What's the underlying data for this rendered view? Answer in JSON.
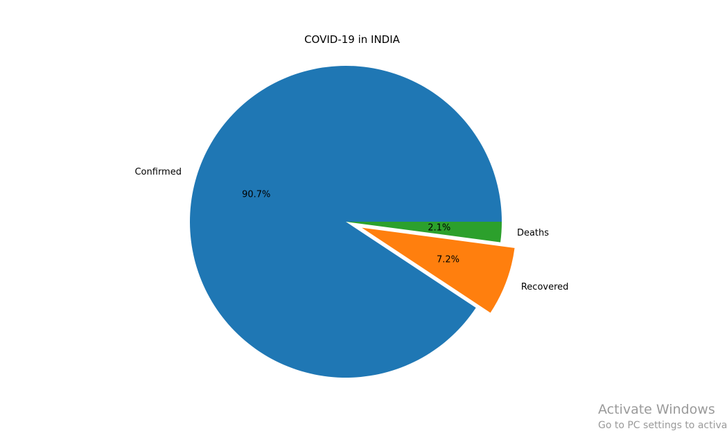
{
  "chart_data": {
    "type": "pie",
    "title": "COVID-19 in INDIA",
    "slices": [
      {
        "label": "Confirmed",
        "percent": 90.7,
        "pct_text": "90.7%",
        "color": "#1f77b4",
        "explode": 0
      },
      {
        "label": "Recovered",
        "percent": 7.2,
        "pct_text": "7.2%",
        "color": "#ff7f0e",
        "explode": 0.1
      },
      {
        "label": "Deaths",
        "percent": 2.1,
        "pct_text": "2.1%",
        "color": "#2ca02c",
        "explode": 0
      }
    ],
    "start_angle_deg": 0,
    "direction": "counterclockwise"
  },
  "watermark": {
    "title": "Activate Windows",
    "subtitle": "Go to PC settings to activate"
  }
}
